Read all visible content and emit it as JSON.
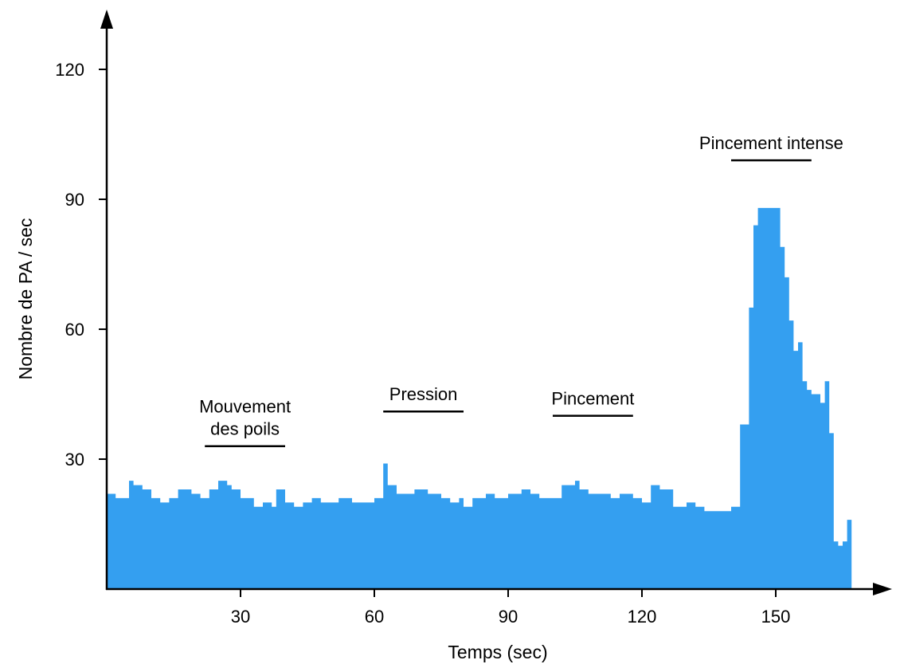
{
  "chart_data": {
    "type": "area",
    "title": "",
    "xlabel": "Temps (sec)",
    "ylabel": "Nombre de PA / sec",
    "xlim": [
      0,
      172
    ],
    "ylim": [
      0,
      127
    ],
    "xticks": [
      30,
      60,
      90,
      120,
      150
    ],
    "yticks": [
      30,
      60,
      90,
      120
    ],
    "grid": false,
    "color": "#349ff0",
    "series": [
      {
        "x": [
          0,
          2,
          5,
          6,
          8,
          10,
          12,
          14,
          16,
          19,
          21,
          23,
          25,
          27,
          28,
          30,
          33,
          35,
          37,
          38,
          40,
          42,
          44,
          46,
          48,
          50,
          52,
          55,
          58,
          60,
          62,
          63,
          65,
          69,
          72,
          75,
          77,
          79,
          80,
          82,
          85,
          87,
          90,
          93,
          95,
          97,
          99,
          102,
          105,
          106,
          108,
          110,
          113,
          115,
          118,
          120,
          122,
          124,
          127,
          130,
          132,
          134,
          137,
          140,
          142,
          144,
          145,
          146,
          147,
          148,
          149,
          150,
          151,
          152,
          153,
          154,
          155,
          156,
          157,
          158,
          160,
          161,
          162,
          163,
          164,
          165,
          166,
          167,
          168
        ],
        "y": [
          22,
          21,
          25,
          24,
          23,
          21,
          20,
          21,
          23,
          22,
          21,
          23,
          25,
          24,
          23,
          21,
          19,
          20,
          19,
          23,
          20,
          19,
          20,
          21,
          20,
          20,
          21,
          20,
          20,
          21,
          29,
          24,
          22,
          23,
          22,
          21,
          20,
          21,
          19,
          21,
          22,
          21,
          22,
          23,
          22,
          21,
          21,
          24,
          25,
          23,
          22,
          22,
          21,
          22,
          21,
          20,
          24,
          23,
          19,
          20,
          19,
          18,
          18,
          19,
          38,
          65,
          84,
          88,
          88,
          88,
          88,
          88,
          79,
          72,
          62,
          55,
          57,
          48,
          46,
          45,
          43,
          48,
          36,
          11,
          10,
          11,
          16,
          0,
          0
        ]
      }
    ],
    "annotations": [
      {
        "text": [
          "Mouvement",
          "des poils"
        ],
        "x_start": 22,
        "x_end": 40,
        "y": 33
      },
      {
        "text": [
          "Pression"
        ],
        "x_start": 62,
        "x_end": 80,
        "y": 41
      },
      {
        "text": [
          "Pincement"
        ],
        "x_start": 100,
        "x_end": 118,
        "y": 40
      },
      {
        "text": [
          "Pincement intense"
        ],
        "x_start": 140,
        "x_end": 158,
        "y": 99
      }
    ]
  }
}
